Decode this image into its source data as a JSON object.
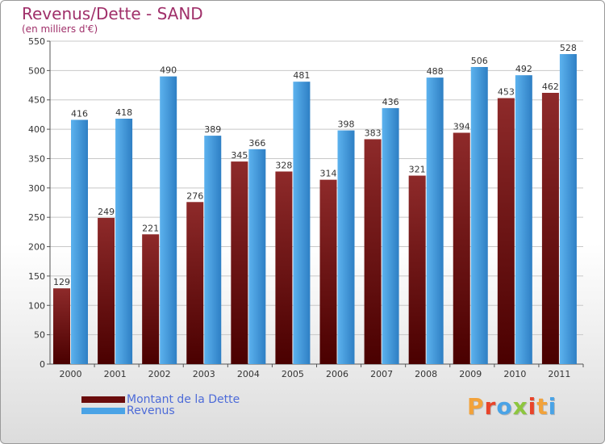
{
  "title": "Revenus/Dette - SAND",
  "subtitle": "(en milliers d'€)",
  "colors": {
    "dette": "#7a1818",
    "revenus": "#4aa3e6",
    "title": "#a0306a",
    "legend_text": "#4d6bd8"
  },
  "logo": {
    "text": "Proxiti",
    "letter_colors": [
      "#f2a23a",
      "#e8442a",
      "#4aa3e6",
      "#8dc63f",
      "#e8442a",
      "#f2a23a",
      "#4aa3e6"
    ]
  },
  "chart_data": {
    "type": "bar",
    "categories": [
      "2000",
      "2001",
      "2002",
      "2003",
      "2004",
      "2005",
      "2006",
      "2007",
      "2008",
      "2009",
      "2010",
      "2011"
    ],
    "series": [
      {
        "name": "Montant de la Dette",
        "values": [
          129,
          249,
          221,
          276,
          345,
          328,
          314,
          383,
          321,
          394,
          453,
          462
        ]
      },
      {
        "name": "Revenus",
        "values": [
          416,
          418,
          490,
          389,
          366,
          481,
          398,
          436,
          488,
          506,
          492,
          528
        ]
      }
    ],
    "ylim": [
      0,
      550
    ],
    "yticks": [
      0,
      50,
      100,
      150,
      200,
      250,
      300,
      350,
      400,
      450,
      500,
      550
    ],
    "grid": true,
    "legend_position": "bottom-left"
  }
}
